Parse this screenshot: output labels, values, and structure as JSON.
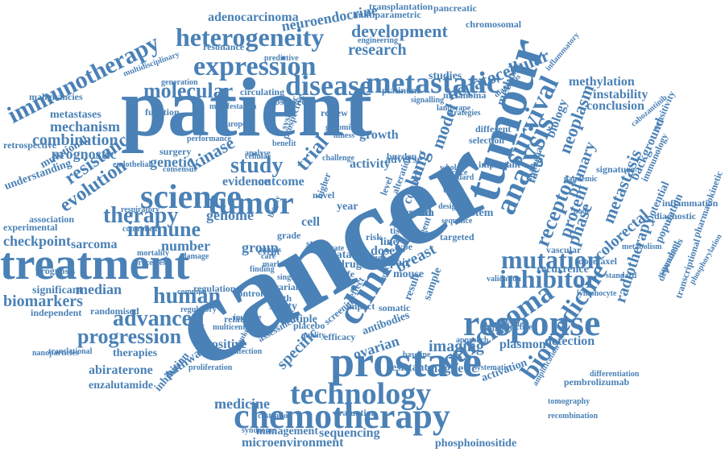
{
  "cloud": {
    "color_primary": "#4a81b6",
    "color_light": "#9cb6d3",
    "words": [
      "cancer",
      "patient",
      "tumour",
      "treatment",
      "prostate",
      "chemotherapy",
      "science",
      "tumor",
      "clinical",
      "response",
      "technology",
      "carcinoma",
      "analysis",
      "survival",
      "biomedicine",
      "inhibitor",
      "mutation",
      "metastatic",
      "expression",
      "heterogeneity",
      "immunotherapy",
      "disease",
      "advanced",
      "human",
      "progression",
      "therapy",
      "immune",
      "molecular",
      "development",
      "research",
      "hepatocellular",
      "study",
      "trial",
      "kinase",
      "evolution",
      "resistance",
      "combination",
      "mechanism",
      "metastases",
      "prognostic",
      "checkpoint",
      "sarcoma",
      "biomarkers",
      "median",
      "significant",
      "independent",
      "genetic",
      "evidence",
      "outcome",
      "genome",
      "number",
      "pathway",
      "inhibition",
      "positive",
      "abiraterone",
      "enzalutamide",
      "therapies",
      "translational",
      "randomised",
      "specific",
      "medicine",
      "microenvironment",
      "management",
      "sequencing",
      "phosphoinositide",
      "magnetic",
      "resistant",
      "imaging",
      "ovarian",
      "breast",
      "mouse",
      "data",
      "drug",
      "dose",
      "receptor",
      "protein",
      "phase",
      "primary",
      "colorectal",
      "metastasis",
      "radiotherapy",
      "docetaxel",
      "methylation",
      "instability",
      "conclusion",
      "neoplasm",
      "factor",
      "biology",
      "lung",
      "model",
      "method",
      "epithelial",
      "activation",
      "detection",
      "plasmon",
      "pembrolizumab",
      "recombination",
      "tomography",
      "differentiation",
      "adenocarcinoma",
      "neuroendocrine",
      "transplantation",
      "multiparametric",
      "pancreatic",
      "chromosomal",
      "multidisciplinary",
      "resonance",
      "predictive",
      "circulating",
      "generation",
      "malignancies",
      "function",
      "observed",
      "platinum",
      "melanoma",
      "studies",
      "cabozantinib",
      "immunology",
      "inflammation",
      "diagnostic",
      "population",
      "potential",
      "background",
      "sensitivity",
      "pharmacokinetic",
      "phosphorylation",
      "transcriptional",
      "dependent",
      "squamous",
      "metabolism",
      "standard",
      "vascular",
      "recurrence",
      "lymphocyte",
      "mortality",
      "processes",
      "damage",
      "regulation",
      "common",
      "control",
      "safety",
      "multiple",
      "placebo",
      "quality",
      "health",
      "variant",
      "life",
      "group",
      "prognosis",
      "experimental",
      "understanding",
      "mutational",
      "retrospective",
      "association",
      "surgery",
      "activity",
      "growth",
      "month",
      "tissue",
      "repair",
      "result",
      "sample",
      "cohort",
      "system",
      "different",
      "selection",
      "year",
      "cell",
      "grade",
      "rate",
      "event",
      "stem",
      "risk",
      "line",
      "type",
      "alteration",
      "review",
      "related",
      "assessment",
      "syndrome",
      "castration",
      "evaluation",
      "antibodies",
      "efficacy",
      "screening",
      "baseline",
      "systematic",
      "approach",
      "profiling",
      "amplification",
      "nanoparticles",
      "endothelial",
      "respiratory",
      "controlled",
      "engineering",
      "signalling",
      "diagnosis",
      "inflammatory",
      "landscape",
      "strategies",
      "adverse",
      "burden",
      "solid",
      "targeted",
      "agent",
      "infection",
      "invasive",
      "leukemia",
      "proliferation",
      "multicentre",
      "regulatory",
      "somatic",
      "impact",
      "effect",
      "single",
      "marker",
      "biopsy",
      "finding",
      "status",
      "care",
      "benefit",
      "novel",
      "higher",
      "level",
      "size",
      "toxicity",
      "node",
      "pandemic",
      "signature",
      "objective",
      "associated",
      "important",
      "standard",
      "practice",
      "whole",
      "target",
      "design",
      "sequence",
      "validation",
      "illness",
      "genomics",
      "consensus",
      "performance",
      "analyse",
      "cellular",
      "prospective",
      "systemic",
      "european",
      "challenge",
      "manifestation"
    ]
  }
}
